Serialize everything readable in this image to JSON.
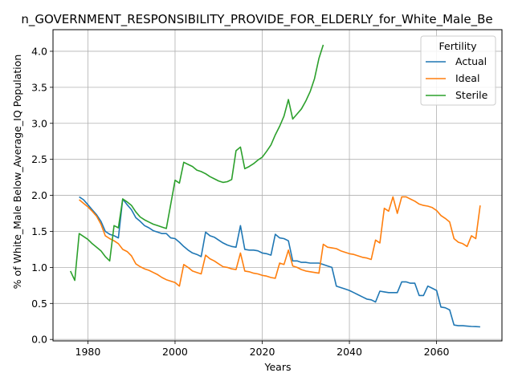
{
  "chart_data": {
    "type": "line",
    "title": "n_GOVERNMENT_RESPONSIBILITY_PROVIDE_FOR_ELDERLY_for_White_Male_Be",
    "xlabel": "Years",
    "ylabel": "% of White_Male Below_Average_IQ Population",
    "xlim": [
      1972,
      2075
    ],
    "ylim": [
      -0.02,
      4.3
    ],
    "xticks": [
      1980,
      2000,
      2020,
      2040,
      2060
    ],
    "xtick_labels": [
      "1980",
      "2000",
      "2020",
      "2040",
      "2060"
    ],
    "yticks": [
      0.0,
      0.5,
      1.0,
      1.5,
      2.0,
      2.5,
      3.0,
      3.5,
      4.0
    ],
    "ytick_labels": [
      "0.0",
      "0.5",
      "1.0",
      "1.5",
      "2.0",
      "2.5",
      "3.0",
      "3.5",
      "4.0"
    ],
    "grid": true,
    "legend": {
      "title": "Fertility",
      "placement": "top-right"
    },
    "series": [
      {
        "name": "Actual",
        "color": "#1f77b4",
        "points": [
          [
            1978,
            1.98
          ],
          [
            1979,
            1.94
          ],
          [
            1980,
            1.87
          ],
          [
            1981,
            1.8
          ],
          [
            1982,
            1.73
          ],
          [
            1983,
            1.64
          ],
          [
            1984,
            1.5
          ],
          [
            1985,
            1.46
          ],
          [
            1986,
            1.44
          ],
          [
            1987,
            1.41
          ],
          [
            1988,
            1.95
          ],
          [
            1989,
            1.87
          ],
          [
            1990,
            1.8
          ],
          [
            1991,
            1.69
          ],
          [
            1992,
            1.64
          ],
          [
            1993,
            1.58
          ],
          [
            1994,
            1.55
          ],
          [
            1995,
            1.51
          ],
          [
            1996,
            1.49
          ],
          [
            1997,
            1.47
          ],
          [
            1998,
            1.47
          ],
          [
            1999,
            1.41
          ],
          [
            2000,
            1.4
          ],
          [
            2001,
            1.35
          ],
          [
            2002,
            1.29
          ],
          [
            2003,
            1.24
          ],
          [
            2004,
            1.2
          ],
          [
            2005,
            1.18
          ],
          [
            2006,
            1.15
          ],
          [
            2007,
            1.49
          ],
          [
            2008,
            1.44
          ],
          [
            2009,
            1.42
          ],
          [
            2010,
            1.38
          ],
          [
            2011,
            1.34
          ],
          [
            2012,
            1.31
          ],
          [
            2013,
            1.29
          ],
          [
            2014,
            1.28
          ],
          [
            2015,
            1.58
          ],
          [
            2016,
            1.25
          ],
          [
            2017,
            1.24
          ],
          [
            2018,
            1.24
          ],
          [
            2019,
            1.23
          ],
          [
            2020,
            1.2
          ],
          [
            2021,
            1.19
          ],
          [
            2022,
            1.17
          ],
          [
            2023,
            1.46
          ],
          [
            2024,
            1.41
          ],
          [
            2025,
            1.4
          ],
          [
            2026,
            1.37
          ],
          [
            2027,
            1.09
          ],
          [
            2028,
            1.09
          ],
          [
            2029,
            1.07
          ],
          [
            2030,
            1.07
          ],
          [
            2031,
            1.06
          ],
          [
            2032,
            1.06
          ],
          [
            2033,
            1.06
          ],
          [
            2034,
            1.04
          ],
          [
            2035,
            1.02
          ],
          [
            2036,
            1.0
          ],
          [
            2037,
            0.74
          ],
          [
            2038,
            0.72
          ],
          [
            2039,
            0.7
          ],
          [
            2040,
            0.68
          ],
          [
            2041,
            0.65
          ],
          [
            2042,
            0.62
          ],
          [
            2043,
            0.59
          ],
          [
            2044,
            0.56
          ],
          [
            2045,
            0.55
          ],
          [
            2046,
            0.52
          ],
          [
            2047,
            0.67
          ],
          [
            2048,
            0.66
          ],
          [
            2049,
            0.65
          ],
          [
            2050,
            0.65
          ],
          [
            2051,
            0.65
          ],
          [
            2052,
            0.8
          ],
          [
            2053,
            0.8
          ],
          [
            2054,
            0.78
          ],
          [
            2055,
            0.78
          ],
          [
            2056,
            0.61
          ],
          [
            2057,
            0.61
          ],
          [
            2058,
            0.74
          ],
          [
            2059,
            0.71
          ],
          [
            2060,
            0.68
          ],
          [
            2061,
            0.45
          ],
          [
            2062,
            0.44
          ],
          [
            2063,
            0.41
          ],
          [
            2064,
            0.2
          ],
          [
            2065,
            0.19
          ],
          [
            2066,
            0.19
          ],
          [
            2067,
            0.185
          ],
          [
            2068,
            0.18
          ],
          [
            2069,
            0.178
          ],
          [
            2070,
            0.175
          ]
        ]
      },
      {
        "name": "Ideal",
        "color": "#ff7f0e",
        "points": [
          [
            1978,
            1.94
          ],
          [
            1979,
            1.89
          ],
          [
            1980,
            1.84
          ],
          [
            1981,
            1.78
          ],
          [
            1982,
            1.71
          ],
          [
            1983,
            1.6
          ],
          [
            1984,
            1.44
          ],
          [
            1985,
            1.4
          ],
          [
            1986,
            1.37
          ],
          [
            1987,
            1.33
          ],
          [
            1988,
            1.25
          ],
          [
            1989,
            1.22
          ],
          [
            1990,
            1.16
          ],
          [
            1991,
            1.05
          ],
          [
            1992,
            1.01
          ],
          [
            1993,
            0.98
          ],
          [
            1994,
            0.96
          ],
          [
            1995,
            0.93
          ],
          [
            1996,
            0.9
          ],
          [
            1997,
            0.86
          ],
          [
            1998,
            0.83
          ],
          [
            1999,
            0.81
          ],
          [
            2000,
            0.79
          ],
          [
            2001,
            0.74
          ],
          [
            2002,
            1.04
          ],
          [
            2003,
            1.0
          ],
          [
            2004,
            0.95
          ],
          [
            2005,
            0.93
          ],
          [
            2006,
            0.91
          ],
          [
            2007,
            1.17
          ],
          [
            2008,
            1.12
          ],
          [
            2009,
            1.09
          ],
          [
            2010,
            1.05
          ],
          [
            2011,
            1.01
          ],
          [
            2012,
            1.0
          ],
          [
            2013,
            0.98
          ],
          [
            2014,
            0.97
          ],
          [
            2015,
            1.2
          ],
          [
            2016,
            0.95
          ],
          [
            2017,
            0.94
          ],
          [
            2018,
            0.92
          ],
          [
            2019,
            0.91
          ],
          [
            2020,
            0.89
          ],
          [
            2021,
            0.88
          ],
          [
            2022,
            0.86
          ],
          [
            2023,
            0.85
          ],
          [
            2024,
            1.06
          ],
          [
            2025,
            1.04
          ],
          [
            2026,
            1.24
          ],
          [
            2027,
            1.02
          ],
          [
            2028,
            1.0
          ],
          [
            2029,
            0.97
          ],
          [
            2030,
            0.95
          ],
          [
            2031,
            0.94
          ],
          [
            2032,
            0.93
          ],
          [
            2033,
            0.92
          ],
          [
            2034,
            1.32
          ],
          [
            2035,
            1.28
          ],
          [
            2036,
            1.27
          ],
          [
            2037,
            1.26
          ],
          [
            2038,
            1.23
          ],
          [
            2039,
            1.21
          ],
          [
            2040,
            1.19
          ],
          [
            2041,
            1.18
          ],
          [
            2042,
            1.16
          ],
          [
            2043,
            1.14
          ],
          [
            2044,
            1.13
          ],
          [
            2045,
            1.11
          ],
          [
            2046,
            1.38
          ],
          [
            2047,
            1.34
          ],
          [
            2048,
            1.82
          ],
          [
            2049,
            1.78
          ],
          [
            2050,
            1.98
          ],
          [
            2051,
            1.75
          ],
          [
            2052,
            1.98
          ],
          [
            2053,
            1.98
          ],
          [
            2054,
            1.95
          ],
          [
            2055,
            1.92
          ],
          [
            2056,
            1.88
          ],
          [
            2057,
            1.86
          ],
          [
            2058,
            1.85
          ],
          [
            2059,
            1.83
          ],
          [
            2060,
            1.79
          ],
          [
            2061,
            1.72
          ],
          [
            2062,
            1.68
          ],
          [
            2063,
            1.63
          ],
          [
            2064,
            1.4
          ],
          [
            2065,
            1.35
          ],
          [
            2066,
            1.33
          ],
          [
            2067,
            1.29
          ],
          [
            2068,
            1.44
          ],
          [
            2069,
            1.4
          ],
          [
            2070,
            1.86
          ]
        ]
      },
      {
        "name": "Sterile",
        "color": "#2ca02c",
        "points": [
          [
            1976,
            0.95
          ],
          [
            1977,
            0.82
          ],
          [
            1978,
            1.47
          ],
          [
            1979,
            1.43
          ],
          [
            1980,
            1.39
          ],
          [
            1981,
            1.33
          ],
          [
            1982,
            1.28
          ],
          [
            1983,
            1.23
          ],
          [
            1984,
            1.15
          ],
          [
            1985,
            1.09
          ],
          [
            1986,
            1.58
          ],
          [
            1987,
            1.55
          ],
          [
            1988,
            1.95
          ],
          [
            1989,
            1.91
          ],
          [
            1990,
            1.86
          ],
          [
            1991,
            1.77
          ],
          [
            1992,
            1.7
          ],
          [
            1993,
            1.66
          ],
          [
            1994,
            1.63
          ],
          [
            1995,
            1.6
          ],
          [
            1996,
            1.58
          ],
          [
            1997,
            1.56
          ],
          [
            1998,
            1.54
          ],
          [
            1999,
            1.87
          ],
          [
            2000,
            2.21
          ],
          [
            2001,
            2.17
          ],
          [
            2002,
            2.46
          ],
          [
            2003,
            2.43
          ],
          [
            2004,
            2.4
          ],
          [
            2005,
            2.35
          ],
          [
            2006,
            2.33
          ],
          [
            2007,
            2.3
          ],
          [
            2008,
            2.26
          ],
          [
            2009,
            2.23
          ],
          [
            2010,
            2.2
          ],
          [
            2011,
            2.18
          ],
          [
            2012,
            2.19
          ],
          [
            2013,
            2.22
          ],
          [
            2014,
            2.62
          ],
          [
            2015,
            2.67
          ],
          [
            2016,
            2.37
          ],
          [
            2017,
            2.4
          ],
          [
            2018,
            2.44
          ],
          [
            2019,
            2.49
          ],
          [
            2020,
            2.53
          ],
          [
            2021,
            2.61
          ],
          [
            2022,
            2.7
          ],
          [
            2023,
            2.84
          ],
          [
            2024,
            2.96
          ],
          [
            2025,
            3.1
          ],
          [
            2026,
            3.33
          ],
          [
            2027,
            3.06
          ],
          [
            2028,
            3.13
          ],
          [
            2029,
            3.2
          ],
          [
            2030,
            3.31
          ],
          [
            2031,
            3.44
          ],
          [
            2032,
            3.62
          ],
          [
            2033,
            3.9
          ],
          [
            2034,
            4.09
          ]
        ]
      }
    ]
  }
}
